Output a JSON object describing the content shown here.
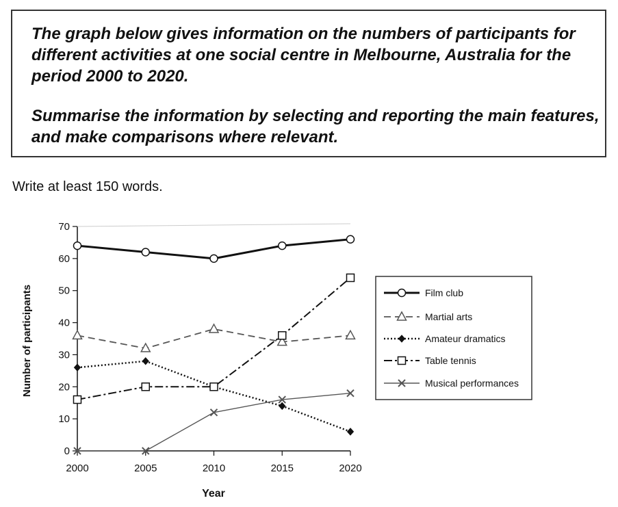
{
  "task": {
    "paragraph1": "The graph below gives information on the numbers of participants for different activities at one social centre in Melbourne, Australia for the period 2000 to 2020.",
    "paragraph2": "Summarise the information by selecting and reporting the main features, and make comparisons where relevant."
  },
  "instruction": "Write at least 150 words.",
  "chart_data": {
    "type": "line",
    "title": "",
    "xlabel": "Year",
    "ylabel": "Number of participants",
    "x": [
      2000,
      2005,
      2010,
      2015,
      2020
    ],
    "xticks": [
      "2000",
      "2005",
      "2010",
      "2015",
      "2020"
    ],
    "yticks": [
      "0",
      "10",
      "20",
      "30",
      "40",
      "50",
      "60",
      "70"
    ],
    "ylim": [
      0,
      70
    ],
    "grid": false,
    "legend_position": "right",
    "series": [
      {
        "name": "Film club",
        "values": [
          64,
          62,
          60,
          64,
          66
        ],
        "marker": "circle",
        "line_style": "solid-thick",
        "color": "#111111"
      },
      {
        "name": "Martial arts",
        "values": [
          36,
          32,
          38,
          34,
          36
        ],
        "marker": "triangle",
        "line_style": "dashed",
        "color": "#555555"
      },
      {
        "name": "Amateur dramatics",
        "values": [
          26,
          28,
          20,
          14,
          6
        ],
        "marker": "diamond",
        "line_style": "dotted",
        "color": "#111111"
      },
      {
        "name": "Table tennis",
        "values": [
          16,
          20,
          20,
          36,
          54
        ],
        "marker": "square",
        "line_style": "dash-dot",
        "color": "#111111"
      },
      {
        "name": "Musical performances",
        "values": [
          0,
          0,
          12,
          16,
          18
        ],
        "marker": "cross",
        "line_style": "solid-thin",
        "color": "#555555"
      }
    ]
  }
}
